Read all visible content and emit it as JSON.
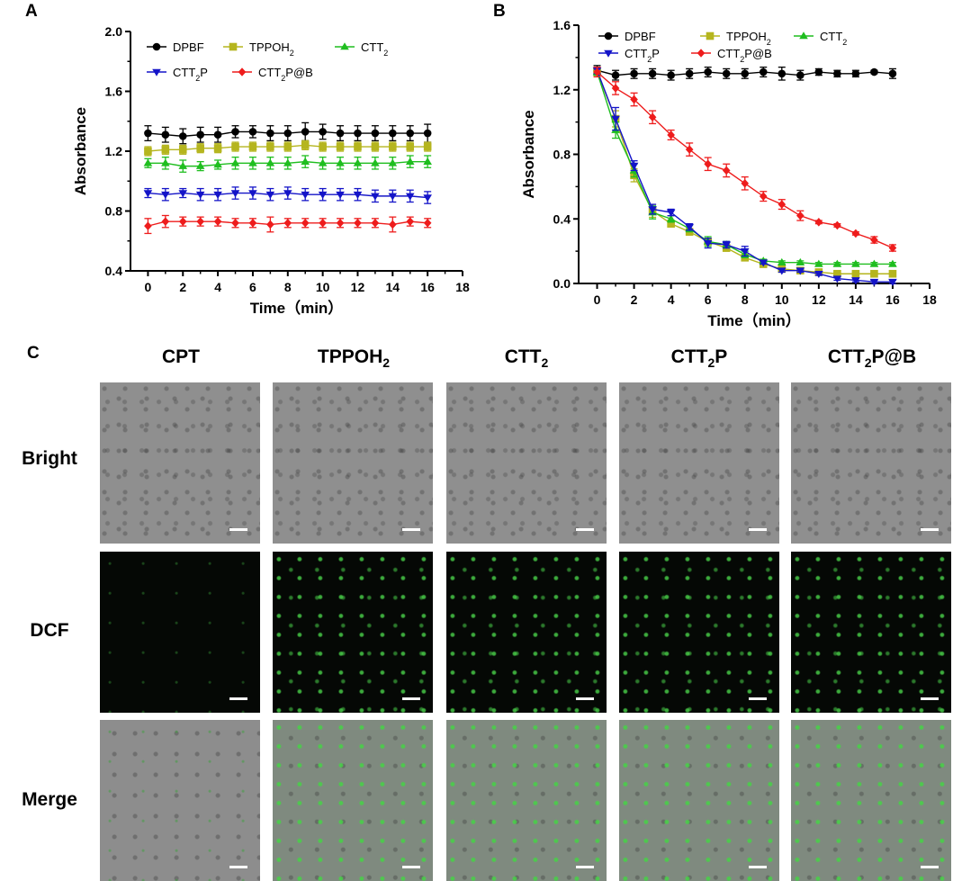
{
  "panels": {
    "a": "A",
    "b": "B",
    "c": "C"
  },
  "chart_data": [
    {
      "type": "line",
      "panel": "A",
      "xlabel": "Time（min）",
      "ylabel": "Absorbance",
      "xlim": [
        -1,
        18
      ],
      "ylim": [
        0.4,
        2.0
      ],
      "xticks": [
        "0",
        "2",
        "4",
        "6",
        "8",
        "10",
        "12",
        "14",
        "16",
        "18"
      ],
      "yticks": [
        "0.4",
        "0.8",
        "1.2",
        "1.6",
        "2.0"
      ],
      "grid": false,
      "legend_position": "top",
      "x": [
        0,
        1,
        2,
        3,
        4,
        5,
        6,
        7,
        8,
        9,
        10,
        11,
        12,
        13,
        14,
        15,
        16
      ],
      "series": [
        {
          "name": "DPBF",
          "label": "DPBF",
          "color": "#000000",
          "marker": "circle",
          "values": [
            1.32,
            1.31,
            1.3,
            1.31,
            1.31,
            1.33,
            1.33,
            1.32,
            1.32,
            1.33,
            1.33,
            1.32,
            1.32,
            1.32,
            1.32,
            1.32,
            1.32
          ],
          "error": [
            0.05,
            0.05,
            0.05,
            0.05,
            0.05,
            0.04,
            0.04,
            0.05,
            0.05,
            0.06,
            0.05,
            0.05,
            0.05,
            0.05,
            0.05,
            0.05,
            0.06
          ]
        },
        {
          "name": "TPPOH2",
          "label": "TPPOH",
          "sub": "2",
          "color": "#b5b51e",
          "marker": "square",
          "values": [
            1.2,
            1.21,
            1.21,
            1.22,
            1.22,
            1.23,
            1.23,
            1.23,
            1.23,
            1.24,
            1.23,
            1.23,
            1.23,
            1.23,
            1.23,
            1.23,
            1.23
          ],
          "error": [
            0.03,
            0.03,
            0.03,
            0.03,
            0.03,
            0.03,
            0.03,
            0.03,
            0.03,
            0.03,
            0.03,
            0.03,
            0.03,
            0.03,
            0.03,
            0.03,
            0.03
          ]
        },
        {
          "name": "CTT2",
          "label": "CTT",
          "sub": "2",
          "color": "#1fbe1f",
          "marker": "triangle-up",
          "values": [
            1.12,
            1.12,
            1.1,
            1.1,
            1.11,
            1.12,
            1.12,
            1.12,
            1.12,
            1.13,
            1.12,
            1.12,
            1.12,
            1.12,
            1.12,
            1.13,
            1.13
          ],
          "error": [
            0.03,
            0.04,
            0.04,
            0.03,
            0.03,
            0.04,
            0.04,
            0.04,
            0.04,
            0.04,
            0.04,
            0.04,
            0.04,
            0.04,
            0.04,
            0.04,
            0.04
          ]
        },
        {
          "name": "CTT2P",
          "label": "CTT",
          "sub": "2",
          "after": "P",
          "color": "#1414c8",
          "marker": "triangle-down",
          "values": [
            0.92,
            0.91,
            0.92,
            0.91,
            0.91,
            0.92,
            0.92,
            0.91,
            0.92,
            0.91,
            0.91,
            0.91,
            0.91,
            0.9,
            0.9,
            0.9,
            0.89
          ],
          "error": [
            0.03,
            0.04,
            0.03,
            0.04,
            0.04,
            0.04,
            0.04,
            0.04,
            0.04,
            0.04,
            0.04,
            0.04,
            0.04,
            0.04,
            0.04,
            0.04,
            0.04
          ]
        },
        {
          "name": "CTT2P@B",
          "label": "CTT",
          "sub": "2",
          "after": "P@B",
          "color": "#ee1c1c",
          "marker": "diamond",
          "values": [
            0.7,
            0.73,
            0.73,
            0.73,
            0.73,
            0.72,
            0.72,
            0.71,
            0.72,
            0.72,
            0.72,
            0.72,
            0.72,
            0.72,
            0.71,
            0.73,
            0.72
          ],
          "error": [
            0.05,
            0.04,
            0.03,
            0.03,
            0.03,
            0.03,
            0.03,
            0.05,
            0.03,
            0.03,
            0.03,
            0.03,
            0.03,
            0.03,
            0.05,
            0.03,
            0.03
          ]
        }
      ]
    },
    {
      "type": "line",
      "panel": "B",
      "xlabel": "Time（min）",
      "ylabel": "Absorbance",
      "xlim": [
        -1,
        18
      ],
      "ylim": [
        0.0,
        1.6
      ],
      "xticks": [
        "0",
        "2",
        "4",
        "6",
        "8",
        "10",
        "12",
        "14",
        "16",
        "18"
      ],
      "yticks": [
        "0.0",
        "0.4",
        "0.8",
        "1.2",
        "1.6"
      ],
      "grid": false,
      "legend_position": "top",
      "x": [
        0,
        1,
        2,
        3,
        4,
        5,
        6,
        7,
        8,
        9,
        10,
        11,
        12,
        13,
        14,
        15,
        16
      ],
      "series": [
        {
          "name": "DPBF",
          "label": "DPBF",
          "color": "#000000",
          "marker": "circle",
          "values": [
            1.32,
            1.29,
            1.3,
            1.3,
            1.29,
            1.3,
            1.31,
            1.3,
            1.3,
            1.31,
            1.3,
            1.29,
            1.31,
            1.3,
            1.3,
            1.31,
            1.3
          ],
          "error": [
            0.03,
            0.03,
            0.03,
            0.03,
            0.03,
            0.03,
            0.03,
            0.03,
            0.03,
            0.03,
            0.04,
            0.03,
            0.02,
            0.02,
            0.02,
            0.01,
            0.03
          ]
        },
        {
          "name": "TPPOH2",
          "label": "TPPOH",
          "sub": "2",
          "color": "#b5b51e",
          "marker": "square",
          "values": [
            1.31,
            1.02,
            0.67,
            0.45,
            0.37,
            0.32,
            0.26,
            0.22,
            0.16,
            0.12,
            0.09,
            0.08,
            0.07,
            0.06,
            0.06,
            0.06,
            0.06
          ],
          "error": [
            0.02,
            0.05,
            0.04,
            0.04,
            0.02,
            0.02,
            0.02,
            0.02,
            0.02,
            0.02,
            0.01,
            0.01,
            0.01,
            0.01,
            0.01,
            0.01,
            0.01
          ]
        },
        {
          "name": "CTT2",
          "label": "CTT",
          "sub": "2",
          "color": "#1fbe1f",
          "marker": "triangle-up",
          "values": [
            1.31,
            0.95,
            0.7,
            0.44,
            0.4,
            0.34,
            0.26,
            0.24,
            0.18,
            0.14,
            0.13,
            0.13,
            0.12,
            0.12,
            0.12,
            0.12,
            0.12
          ],
          "error": [
            0.02,
            0.05,
            0.04,
            0.04,
            0.02,
            0.02,
            0.03,
            0.02,
            0.02,
            0.01,
            0.01,
            0.01,
            0.01,
            0.01,
            0.01,
            0.01,
            0.01
          ]
        },
        {
          "name": "CTT2P",
          "label": "CTT",
          "sub": "2",
          "after": "P",
          "color": "#1414c8",
          "marker": "triangle-down",
          "values": [
            1.32,
            1.02,
            0.73,
            0.46,
            0.44,
            0.35,
            0.25,
            0.24,
            0.2,
            0.13,
            0.08,
            0.08,
            0.06,
            0.03,
            0.02,
            0.01,
            0.01
          ],
          "error": [
            0.02,
            0.07,
            0.03,
            0.03,
            0.02,
            0.02,
            0.03,
            0.02,
            0.03,
            0.01,
            0.01,
            0.01,
            0.01,
            0.01,
            0.01,
            0.01,
            0.01
          ]
        },
        {
          "name": "CTT2P@B",
          "label": "CTT",
          "sub": "2",
          "after": "P@B",
          "color": "#ee1c1c",
          "marker": "diamond",
          "values": [
            1.31,
            1.21,
            1.14,
            1.03,
            0.92,
            0.83,
            0.74,
            0.7,
            0.62,
            0.54,
            0.49,
            0.42,
            0.38,
            0.36,
            0.31,
            0.27,
            0.22
          ],
          "error": [
            0.03,
            0.04,
            0.04,
            0.04,
            0.03,
            0.04,
            0.04,
            0.04,
            0.04,
            0.03,
            0.03,
            0.03,
            0.01,
            0.01,
            0.01,
            0.02,
            0.02
          ]
        }
      ]
    }
  ],
  "micrograph": {
    "columns": [
      {
        "main": "CPT"
      },
      {
        "main": "TPPOH",
        "sub": "2"
      },
      {
        "main": "CTT",
        "sub": "2"
      },
      {
        "main": "CTT",
        "sub": "2",
        "after": "P"
      },
      {
        "main": "CTT",
        "sub": "2",
        "after": "P@B"
      }
    ],
    "rows": [
      "Bright",
      "DCF",
      "Merge"
    ]
  }
}
